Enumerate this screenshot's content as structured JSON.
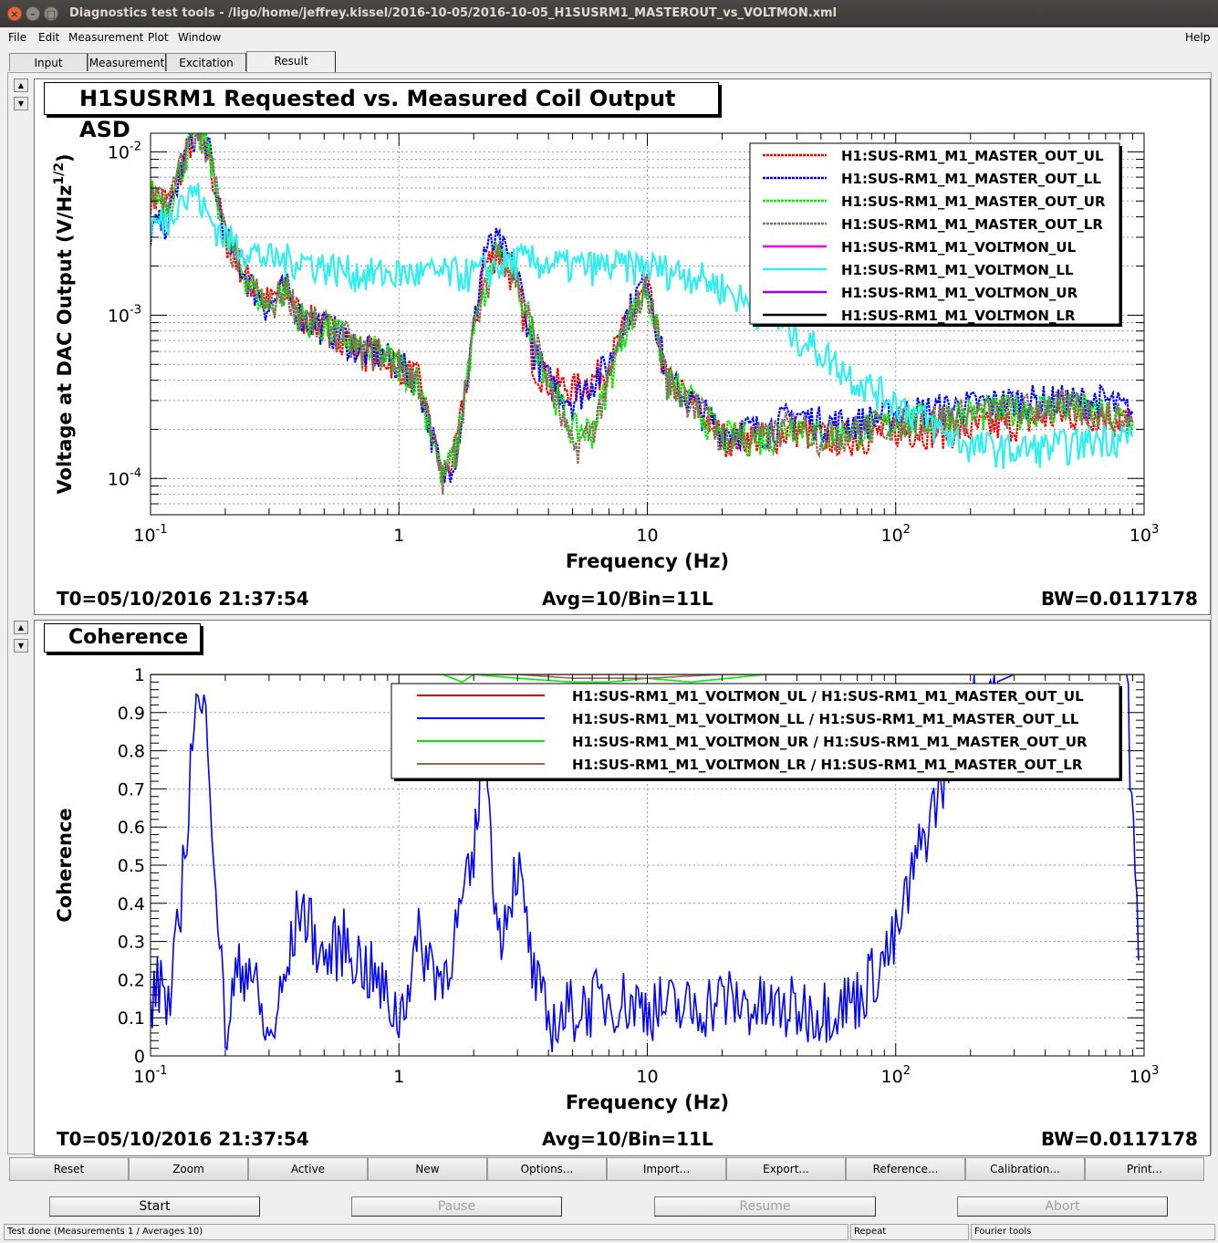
{
  "window": {
    "title": "Diagnostics test tools - /ligo/home/jeffrey.kissel/2016-10-05/2016-10-05_H1SUSRM1_MASTEROUT_vs_VOLTMON.xml",
    "close_glyph": "×",
    "minimize_glyph": "–",
    "maximize_glyph": "□"
  },
  "menu": {
    "file": "File",
    "edit": "Edit",
    "measurement": "Measurement",
    "plot": "Plot",
    "window": "Window",
    "help": "Help"
  },
  "tabs": [
    {
      "label": "Input"
    },
    {
      "label": "Measurement"
    },
    {
      "label": "Excitation"
    },
    {
      "label": "Result"
    }
  ],
  "spinner": {
    "up": "▲",
    "down": "▼"
  },
  "top_plot": {
    "title": "H1SUSRM1 Requested vs. Measured Coil Output ASD",
    "t0": "T0=05/10/2016 21:37:54",
    "avg": "Avg=10/Bin=11L",
    "bw": "BW=0.0117178"
  },
  "bottom_plot": {
    "title": "Coherence",
    "t0": "T0=05/10/2016 21:37:54",
    "avg": "Avg=10/Bin=11L",
    "bw": "BW=0.0117178"
  },
  "chart_data": [
    {
      "type": "line",
      "title": "H1SUSRM1 Requested vs. Measured Coil Output ASD",
      "xlabel": "Frequency (Hz)",
      "ylabel": "Voltage at DAC Output (V/Hz",
      "ylabel_sup": "1/2",
      "ylabel_close": ")",
      "xscale": "log",
      "yscale": "log",
      "xlim": [
        0.1,
        1000
      ],
      "ylim": [
        6e-05,
        0.013
      ],
      "xticks": [
        {
          "v": 0.1,
          "base": "10",
          "exp": "-1"
        },
        {
          "v": 1,
          "base": "1",
          "exp": ""
        },
        {
          "v": 10,
          "base": "10",
          "exp": ""
        },
        {
          "v": 100,
          "base": "10",
          "exp": "2"
        },
        {
          "v": 1000,
          "base": "10",
          "exp": "3"
        }
      ],
      "yticks": [
        {
          "v": 0.01,
          "base": "10",
          "exp": "-2"
        },
        {
          "v": 0.001,
          "base": "10",
          "exp": "-3"
        },
        {
          "v": 0.0001,
          "base": "10",
          "exp": "-4"
        }
      ],
      "grid": true,
      "legend_position": "top-right",
      "series": [
        {
          "name": "H1:SUS-RM1_M1_MASTER_OUT_UL",
          "color": "#ff0000",
          "dash": true,
          "x": [
            0.1,
            0.12,
            0.13,
            0.15,
            0.17,
            0.2,
            0.25,
            0.3,
            0.35,
            0.4,
            0.5,
            0.6,
            0.7,
            0.8,
            1,
            1.2,
            1.5,
            1.7,
            2,
            2.2,
            2.5,
            3,
            3.5,
            4,
            5,
            6,
            7,
            8,
            10,
            12,
            15,
            20,
            30,
            40,
            50,
            70,
            100,
            200,
            300,
            500,
            700,
            900
          ],
          "y": [
            0.0055,
            0.005,
            0.0075,
            0.013,
            0.01,
            0.003,
            0.0016,
            0.0012,
            0.0015,
            0.001,
            0.00085,
            0.00075,
            0.0006,
            0.0006,
            0.0005,
            0.0004,
            0.0001,
            0.00015,
            0.0008,
            0.002,
            0.0025,
            0.0015,
            0.0005,
            0.0004,
            0.00035,
            0.0004,
            0.0005,
            0.0008,
            0.0015,
            0.0004,
            0.0003,
            0.00018,
            0.00018,
            0.0002,
            0.00018,
            0.00018,
            0.0002,
            0.0002,
            0.00022,
            0.00025,
            0.00025,
            0.00022
          ]
        },
        {
          "name": "H1:SUS-RM1_M1_MASTER_OUT_LL",
          "color": "#0000ff",
          "dash": true,
          "x": [
            0.1,
            0.12,
            0.13,
            0.15,
            0.17,
            0.2,
            0.25,
            0.3,
            0.35,
            0.4,
            0.5,
            0.6,
            0.7,
            0.8,
            1,
            1.2,
            1.5,
            1.7,
            2,
            2.2,
            2.5,
            3,
            3.5,
            4,
            5,
            6,
            7,
            8,
            10,
            12,
            15,
            20,
            30,
            40,
            50,
            70,
            100,
            200,
            300,
            500,
            700,
            900
          ],
          "y": [
            0.0033,
            0.004,
            0.007,
            0.013,
            0.011,
            0.003,
            0.0016,
            0.0011,
            0.0015,
            0.001,
            0.00085,
            0.00075,
            0.0006,
            0.0006,
            0.0005,
            0.0004,
            0.0001,
            0.00015,
            0.0008,
            0.0025,
            0.0028,
            0.0018,
            0.0006,
            0.0004,
            0.0003,
            0.0004,
            0.0005,
            0.0009,
            0.0018,
            0.0004,
            0.0003,
            0.0002,
            0.0002,
            0.00025,
            0.00022,
            0.00022,
            0.00025,
            0.00028,
            0.0003,
            0.0003,
            0.0003,
            0.00025
          ]
        },
        {
          "name": "H1:SUS-RM1_M1_MASTER_OUT_UR",
          "color": "#00ee00",
          "dash": true,
          "x": [
            0.1,
            0.12,
            0.13,
            0.15,
            0.17,
            0.2,
            0.25,
            0.3,
            0.35,
            0.4,
            0.5,
            0.6,
            0.7,
            0.8,
            1,
            1.2,
            1.5,
            1.7,
            2,
            2.5,
            3,
            4,
            5,
            6,
            7,
            8,
            10,
            12,
            15,
            20,
            30,
            40,
            50,
            70,
            100,
            200,
            500,
            900
          ],
          "y": [
            0.0055,
            0.005,
            0.0075,
            0.013,
            0.011,
            0.003,
            0.0016,
            0.0011,
            0.0015,
            0.001,
            0.00085,
            0.00075,
            0.0006,
            0.0006,
            0.0005,
            0.0004,
            0.0001,
            0.00015,
            0.0008,
            0.0026,
            0.0016,
            0.0004,
            0.0002,
            0.0002,
            0.0004,
            0.0008,
            0.0015,
            0.0004,
            0.0003,
            0.00018,
            0.00018,
            0.00022,
            0.00018,
            0.0002,
            0.00022,
            0.00025,
            0.00028,
            0.00022
          ]
        },
        {
          "name": "H1:SUS-RM1_M1_MASTER_OUT_LR",
          "color": "#8b6d5c",
          "dash": true,
          "x": [
            0.1,
            0.12,
            0.13,
            0.15,
            0.17,
            0.2,
            0.25,
            0.3,
            0.35,
            0.4,
            0.5,
            0.6,
            0.7,
            0.8,
            1,
            1.2,
            1.5,
            1.7,
            2,
            2.5,
            3,
            4,
            5,
            6,
            7,
            8,
            10,
            12,
            15,
            20,
            30,
            40,
            50,
            70,
            100,
            200,
            500,
            900
          ],
          "y": [
            0.0055,
            0.005,
            0.0075,
            0.013,
            0.011,
            0.003,
            0.0016,
            0.0011,
            0.0015,
            0.001,
            0.00085,
            0.00075,
            0.0006,
            0.0006,
            0.0005,
            0.0004,
            0.0001,
            0.00015,
            0.0008,
            0.0026,
            0.0016,
            0.0004,
            0.00015,
            0.0002,
            0.0004,
            0.0008,
            0.0015,
            0.0004,
            0.0003,
            0.00018,
            0.00018,
            0.00022,
            0.00018,
            0.0002,
            0.00022,
            0.00025,
            0.00028,
            0.00022
          ]
        },
        {
          "name": "H1:SUS-RM1_M1_VOLTMON_UL",
          "color": "#ff00ff",
          "dash": false,
          "x": [],
          "y": []
        },
        {
          "name": "H1:SUS-RM1_M1_VOLTMON_LL",
          "color": "#33eeee",
          "dash": false,
          "x": [
            0.1,
            0.12,
            0.13,
            0.14,
            0.15,
            0.17,
            0.2,
            0.25,
            0.3,
            0.4,
            0.5,
            0.7,
            1,
            1.5,
            2,
            3,
            5,
            7,
            10,
            15,
            20,
            30,
            50,
            70,
            100,
            150,
            200,
            300,
            500,
            700,
            900
          ],
          "y": [
            0.0035,
            0.004,
            0.0055,
            0.005,
            0.006,
            0.004,
            0.003,
            0.0025,
            0.0022,
            0.0022,
            0.002,
            0.0018,
            0.0018,
            0.0018,
            0.0018,
            0.0022,
            0.002,
            0.002,
            0.002,
            0.0018,
            0.0015,
            0.001,
            0.0006,
            0.0004,
            0.0003,
            0.0002,
            0.00016,
            0.00015,
            0.00016,
            0.00018,
            0.00018
          ]
        },
        {
          "name": "H1:SUS-RM1_M1_VOLTMON_UR",
          "color": "#9900ff",
          "dash": false,
          "x": [],
          "y": []
        },
        {
          "name": "H1:SUS-RM1_M1_VOLTMON_LR",
          "color": "#000000",
          "dash": false,
          "x": [],
          "y": []
        }
      ]
    },
    {
      "type": "line",
      "title": "Coherence",
      "xlabel": "Frequency (Hz)",
      "ylabel": "Coherence",
      "ylabel_sup": "",
      "ylabel_close": "",
      "xscale": "log",
      "yscale": "linear",
      "xlim": [
        0.1,
        1000
      ],
      "ylim": [
        0,
        1
      ],
      "xticks": [
        {
          "v": 0.1,
          "base": "10",
          "exp": "-1"
        },
        {
          "v": 1,
          "base": "1",
          "exp": ""
        },
        {
          "v": 10,
          "base": "10",
          "exp": ""
        },
        {
          "v": 100,
          "base": "10",
          "exp": "2"
        },
        {
          "v": 1000,
          "base": "10",
          "exp": "3"
        }
      ],
      "yticks": [
        {
          "v": 0,
          "label": "0"
        },
        {
          "v": 0.1,
          "label": "0.1"
        },
        {
          "v": 0.2,
          "label": "0.2"
        },
        {
          "v": 0.3,
          "label": "0.3"
        },
        {
          "v": 0.4,
          "label": "0.4"
        },
        {
          "v": 0.5,
          "label": "0.5"
        },
        {
          "v": 0.6,
          "label": "0.6"
        },
        {
          "v": 0.7,
          "label": "0.7"
        },
        {
          "v": 0.8,
          "label": "0.8"
        },
        {
          "v": 0.9,
          "label": "0.9"
        },
        {
          "v": 1,
          "label": "1"
        }
      ],
      "grid": true,
      "legend_position": "top-right",
      "series": [
        {
          "name": "H1:SUS-RM1_M1_VOLTMON_UL / H1:SUS-RM1_M1_MASTER_OUT_UL",
          "color": "#ff0000",
          "x": [
            0.1,
            1000
          ],
          "y": [
            1,
            1
          ]
        },
        {
          "name": "H1:SUS-RM1_M1_VOLTMON_LL / H1:SUS-RM1_M1_MASTER_OUT_LL",
          "color": "#0000ff",
          "x": [
            0.1,
            0.11,
            0.12,
            0.13,
            0.14,
            0.15,
            0.17,
            0.18,
            0.2,
            0.22,
            0.25,
            0.28,
            0.3,
            0.35,
            0.4,
            0.5,
            0.6,
            0.8,
            1,
            1.2,
            1.5,
            2,
            2.2,
            2.5,
            3,
            3.5,
            4,
            5,
            7,
            10,
            15,
            20,
            30,
            50,
            70,
            100,
            120,
            150,
            200,
            300,
            500,
            700,
            850,
            950
          ],
          "y": [
            0.13,
            0.2,
            0.12,
            0.35,
            0.6,
            0.92,
            0.87,
            0.55,
            0.05,
            0.2,
            0.25,
            0.1,
            0.03,
            0.2,
            0.4,
            0.25,
            0.3,
            0.2,
            0.1,
            0.3,
            0.2,
            0.5,
            0.9,
            0.3,
            0.5,
            0.2,
            0.08,
            0.12,
            0.15,
            0.13,
            0.12,
            0.15,
            0.12,
            0.12,
            0.15,
            0.3,
            0.5,
            0.7,
            0.95,
            1,
            1,
            1,
            1,
            0.25
          ]
        },
        {
          "name": "H1:SUS-RM1_M1_VOLTMON_UR / H1:SUS-RM1_M1_MASTER_OUT_UR",
          "color": "#00ee00",
          "x": [
            0.1,
            1.5,
            1.8,
            2,
            3,
            5,
            7,
            10,
            15,
            30,
            1000
          ],
          "y": [
            1,
            1,
            0.98,
            1,
            0.99,
            0.98,
            0.98,
            0.99,
            0.98,
            1,
            1
          ]
        },
        {
          "name": "H1:SUS-RM1_M1_VOLTMON_LR / H1:SUS-RM1_M1_MASTER_OUT_LR",
          "color": "#8b6d5c",
          "x": [
            0.1,
            3,
            5,
            10,
            20,
            1000
          ],
          "y": [
            1,
            1,
            0.99,
            0.99,
            1,
            1
          ]
        }
      ]
    }
  ],
  "buttons": [
    "Reset",
    "Zoom",
    "Active",
    "New",
    "Options...",
    "Import...",
    "Export...",
    "Reference...",
    "Calibration...",
    "Print..."
  ],
  "controls": {
    "start": "Start",
    "pause": "Pause",
    "resume": "Resume",
    "abort": "Abort"
  },
  "status": {
    "main": "Test done (Measurements 1 / Averages 10)",
    "repeat": "Repeat",
    "fourier": "Fourier tools"
  }
}
